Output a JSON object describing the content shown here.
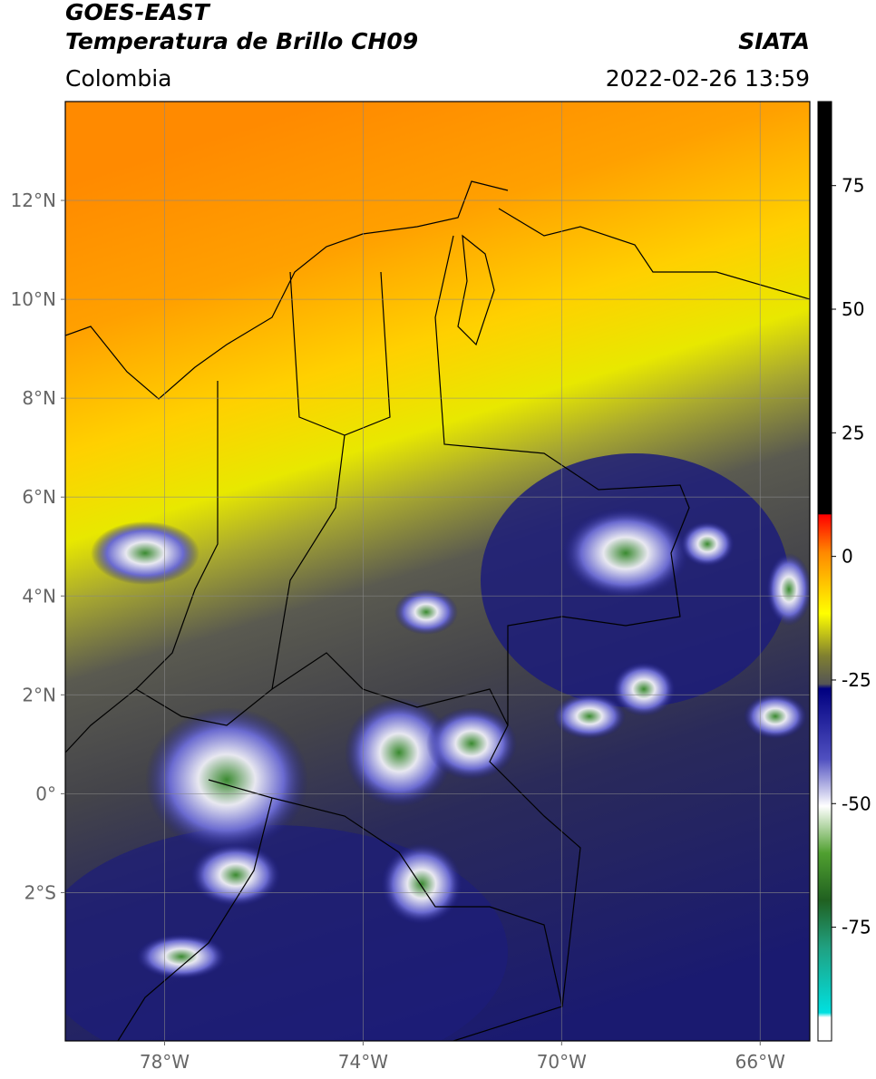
{
  "header": {
    "satellite": "GOES-EAST",
    "product": "Temperatura de Brillo CH09",
    "source": "SIATA",
    "region": "Colombia",
    "datetime": "2022-02-26 13:59"
  },
  "map": {
    "xlim": [
      -80,
      -65
    ],
    "ylim": [
      -5,
      14
    ],
    "xticks": [
      {
        "value": -78,
        "label": "78°W"
      },
      {
        "value": -74,
        "label": "74°W"
      },
      {
        "value": -70,
        "label": "70°W"
      },
      {
        "value": -66,
        "label": "66°W"
      }
    ],
    "yticks": [
      {
        "value": 12,
        "label": "12°N"
      },
      {
        "value": 10,
        "label": "10°N"
      },
      {
        "value": 8,
        "label": "8°N"
      },
      {
        "value": 6,
        "label": "6°N"
      },
      {
        "value": 4,
        "label": "4°N"
      },
      {
        "value": 2,
        "label": "2°N"
      },
      {
        "value": 0,
        "label": "0°"
      },
      {
        "value": -2,
        "label": "2°S"
      }
    ],
    "grid": true
  },
  "colorbar": {
    "lim": [
      -98,
      92
    ],
    "ticks": [
      75,
      50,
      25,
      0,
      -25,
      -50,
      -75
    ]
  }
}
